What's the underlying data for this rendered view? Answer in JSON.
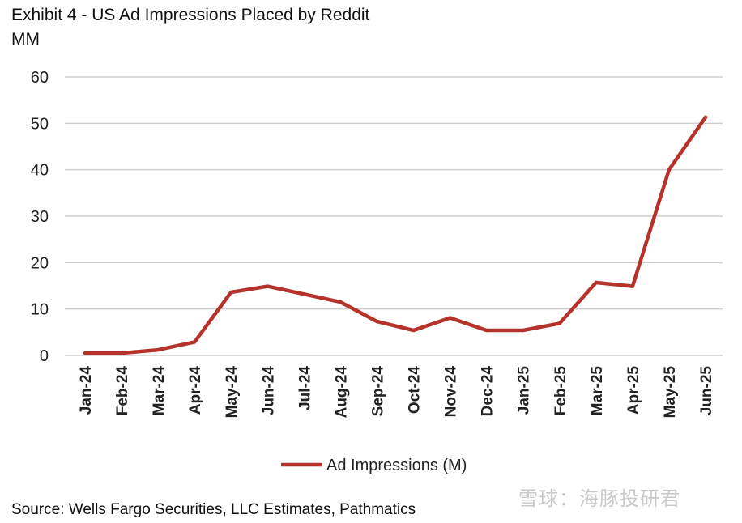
{
  "header": {
    "title": "Exhibit 4 - US Ad Impressions Placed by Reddit",
    "unit": "MM"
  },
  "footer": {
    "source": "Source: Wells Fargo Securities, LLC Estimates, Pathmatics"
  },
  "watermark": {
    "text": "雪球：海豚投研君"
  },
  "chart_data": {
    "type": "line",
    "title": "Exhibit 4 - US Ad Impressions Placed by Reddit",
    "ylabel": "MM",
    "xlabel": "",
    "categories": [
      "Jan-24",
      "Feb-24",
      "Mar-24",
      "Apr-24",
      "May-24",
      "Jun-24",
      "Jul-24",
      "Aug-24",
      "Sep-24",
      "Oct-24",
      "Nov-24",
      "Dec-24",
      "Jan-25",
      "Feb-25",
      "Mar-25",
      "Apr-25",
      "May-25",
      "Jun-25"
    ],
    "series": [
      {
        "name": "Ad Impressions (M)",
        "color": "#b5332a",
        "values": [
          0.5,
          0.5,
          1.2,
          2.9,
          13.6,
          14.9,
          13.2,
          11.5,
          7.3,
          5.4,
          8.1,
          5.4,
          5.4,
          6.9,
          15.7,
          14.9,
          40.0,
          51.3
        ]
      }
    ],
    "yticks": [
      0,
      10,
      20,
      30,
      40,
      50,
      60
    ],
    "ylim": [
      0,
      60
    ],
    "grid": true,
    "legend_position": "bottom"
  }
}
